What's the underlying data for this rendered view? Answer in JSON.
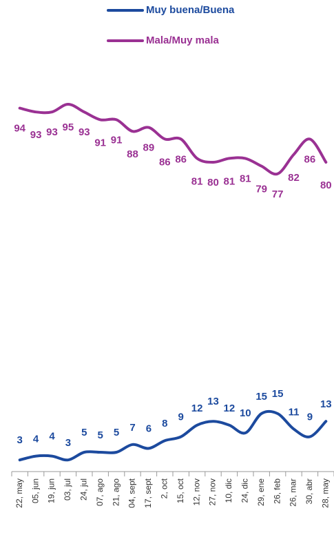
{
  "chart_data": {
    "type": "line",
    "categories": [
      "22, may",
      "05, jun",
      "19, jun",
      "03, jul",
      "24, jul",
      "07, ago",
      "21, ago",
      "04, sept",
      "17, sept",
      "2, oct",
      "15, oct",
      "12, nov",
      "27, nov",
      "10, dic",
      "24, dic",
      "29, ene",
      "26, feb",
      "26, mar",
      "30, abr",
      "28, may"
    ],
    "series": [
      {
        "name": "Muy buena/Buena",
        "color": "#1c4a9e",
        "values": [
          3,
          4,
          4,
          3,
          5,
          5,
          5,
          7,
          6,
          8,
          9,
          12,
          13,
          12,
          10,
          15,
          15,
          11,
          9,
          13
        ]
      },
      {
        "name": "Mala/Muy mala",
        "color": "#9a3193",
        "values": [
          94,
          93,
          93,
          95,
          93,
          91,
          91,
          88,
          89,
          86,
          86,
          81,
          80,
          81,
          81,
          79,
          77,
          82,
          86,
          80
        ]
      }
    ],
    "ylim": [
      0,
      100
    ],
    "smooth": true
  }
}
